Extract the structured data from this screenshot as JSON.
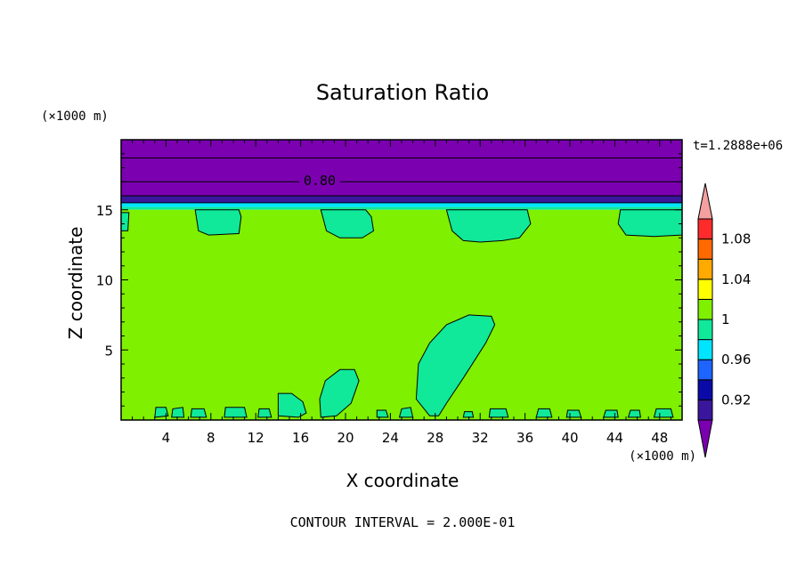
{
  "chart_data": {
    "type": "heatmap",
    "title": "Saturation Ratio",
    "xlabel": "X coordinate",
    "ylabel": "Z coordinate",
    "x_unit": "(×1000 m)",
    "y_unit": "(×1000 m)",
    "time_label": "t=1.2888e+06",
    "footer": "CONTOUR INTERVAL = 2.000E-01",
    "xlim": [
      0,
      50
    ],
    "ylim": [
      0,
      20
    ],
    "x_ticks": [
      4,
      8,
      12,
      16,
      20,
      24,
      28,
      32,
      36,
      40,
      44,
      48
    ],
    "y_ticks": [
      5,
      10,
      15
    ],
    "contour_label": "0.80",
    "colorbar": {
      "levels": [
        "0.92",
        "0.96",
        "1",
        "1.04",
        "1.08"
      ],
      "colors": [
        "#7b00b0",
        "#3a169c",
        "#0a0aa8",
        "#1e64ff",
        "#00e5ff",
        "#10e89a",
        "#7ff000",
        "#ffff00",
        "#ffaa00",
        "#ff6a00",
        "#ff2b2b",
        "#f5a0a0"
      ]
    },
    "layers": [
      {
        "z_from": 16.0,
        "z_to": 20.0,
        "color": "#7b00b0"
      },
      {
        "z_from": 15.5,
        "z_to": 16.0,
        "color": "#3a169c"
      },
      {
        "z_from": 15.2,
        "z_to": 15.5,
        "color": "#00e5ff"
      },
      {
        "z_from": 15.0,
        "z_to": 15.2,
        "color": "#10e89a"
      },
      {
        "z_from": 0.0,
        "z_to": 15.0,
        "color": "#7ff000"
      }
    ],
    "contour_lines_z": [
      16.0,
      17.0,
      18.7,
      15.5
    ],
    "regions": [
      {
        "color": "#10e89a",
        "points": [
          [
            27.5,
            0.3
          ],
          [
            26.3,
            1.5
          ],
          [
            26.5,
            4.0
          ],
          [
            27.5,
            5.5
          ],
          [
            29.0,
            6.8
          ],
          [
            31.0,
            7.5
          ],
          [
            33.0,
            7.4
          ],
          [
            33.3,
            6.8
          ],
          [
            32.5,
            5.5
          ],
          [
            30.5,
            3.0
          ],
          [
            29.0,
            1.2
          ],
          [
            28.3,
            0.3
          ]
        ]
      },
      {
        "color": "#10e89a",
        "points": [
          [
            17.8,
            0.2
          ],
          [
            17.7,
            1.5
          ],
          [
            18.2,
            2.8
          ],
          [
            19.5,
            3.6
          ],
          [
            20.8,
            3.6
          ],
          [
            21.2,
            2.8
          ],
          [
            20.5,
            1.2
          ],
          [
            19.2,
            0.3
          ]
        ]
      },
      {
        "color": "#10e89a",
        "points": [
          [
            14.0,
            0.3
          ],
          [
            14.0,
            1.9
          ],
          [
            15.2,
            1.9
          ],
          [
            16.2,
            1.3
          ],
          [
            16.5,
            0.5
          ],
          [
            15.8,
            0.2
          ]
        ]
      },
      {
        "color": "#10e89a",
        "points": [
          [
            6.6,
            15.0
          ],
          [
            6.9,
            13.5
          ],
          [
            7.8,
            13.2
          ],
          [
            10.5,
            13.3
          ],
          [
            10.7,
            14.5
          ],
          [
            10.5,
            15.0
          ]
        ]
      },
      {
        "color": "#10e89a",
        "points": [
          [
            17.8,
            15.0
          ],
          [
            18.3,
            13.5
          ],
          [
            19.5,
            13.0
          ],
          [
            21.5,
            13.0
          ],
          [
            22.5,
            13.5
          ],
          [
            22.3,
            14.5
          ],
          [
            21.8,
            15.0
          ]
        ]
      },
      {
        "color": "#10e89a",
        "points": [
          [
            29.0,
            15.0
          ],
          [
            29.5,
            13.5
          ],
          [
            30.5,
            12.8
          ],
          [
            32.0,
            12.7
          ],
          [
            34.0,
            12.8
          ],
          [
            35.5,
            13.0
          ],
          [
            36.5,
            14.0
          ],
          [
            36.2,
            15.0
          ]
        ]
      },
      {
        "color": "#10e89a",
        "points": [
          [
            44.5,
            15.0
          ],
          [
            44.3,
            14.0
          ],
          [
            45.0,
            13.2
          ],
          [
            47.5,
            13.1
          ],
          [
            50.0,
            13.2
          ],
          [
            50.0,
            15.0
          ]
        ]
      },
      {
        "color": "#10e89a",
        "points": [
          [
            0.0,
            14.8
          ],
          [
            0.7,
            14.8
          ],
          [
            0.6,
            13.5
          ],
          [
            0.0,
            13.5
          ]
        ]
      },
      {
        "color": "#10e89a",
        "points": [
          [
            3.0,
            0.2
          ],
          [
            3.1,
            0.9
          ],
          [
            4.0,
            0.9
          ],
          [
            4.2,
            0.3
          ]
        ]
      },
      {
        "color": "#10e89a",
        "points": [
          [
            4.5,
            0.2
          ],
          [
            4.6,
            0.8
          ],
          [
            5.5,
            0.9
          ],
          [
            5.6,
            0.2
          ]
        ]
      },
      {
        "color": "#10e89a",
        "points": [
          [
            6.2,
            0.2
          ],
          [
            6.3,
            0.8
          ],
          [
            7.4,
            0.8
          ],
          [
            7.6,
            0.2
          ]
        ]
      },
      {
        "color": "#10e89a",
        "points": [
          [
            9.2,
            0.2
          ],
          [
            9.3,
            0.9
          ],
          [
            11.0,
            0.9
          ],
          [
            11.2,
            0.2
          ]
        ]
      },
      {
        "color": "#10e89a",
        "points": [
          [
            12.2,
            0.2
          ],
          [
            12.3,
            0.8
          ],
          [
            13.2,
            0.8
          ],
          [
            13.4,
            0.2
          ]
        ]
      },
      {
        "color": "#10e89a",
        "points": [
          [
            22.8,
            0.2
          ],
          [
            22.8,
            0.7
          ],
          [
            23.6,
            0.7
          ],
          [
            23.8,
            0.2
          ]
        ]
      },
      {
        "color": "#10e89a",
        "points": [
          [
            24.8,
            0.2
          ],
          [
            25.0,
            0.8
          ],
          [
            25.8,
            0.9
          ],
          [
            26.0,
            0.2
          ]
        ]
      },
      {
        "color": "#10e89a",
        "points": [
          [
            30.5,
            0.2
          ],
          [
            30.6,
            0.6
          ],
          [
            31.3,
            0.6
          ],
          [
            31.4,
            0.2
          ]
        ]
      },
      {
        "color": "#10e89a",
        "points": [
          [
            32.8,
            0.2
          ],
          [
            32.9,
            0.8
          ],
          [
            34.3,
            0.8
          ],
          [
            34.5,
            0.2
          ]
        ]
      },
      {
        "color": "#10e89a",
        "points": [
          [
            37.0,
            0.2
          ],
          [
            37.2,
            0.8
          ],
          [
            38.2,
            0.8
          ],
          [
            38.4,
            0.2
          ]
        ]
      },
      {
        "color": "#10e89a",
        "points": [
          [
            39.7,
            0.2
          ],
          [
            39.8,
            0.7
          ],
          [
            40.8,
            0.7
          ],
          [
            41.0,
            0.2
          ]
        ]
      },
      {
        "color": "#10e89a",
        "points": [
          [
            43.0,
            0.2
          ],
          [
            43.2,
            0.7
          ],
          [
            44.2,
            0.7
          ],
          [
            44.3,
            0.2
          ]
        ]
      },
      {
        "color": "#10e89a",
        "points": [
          [
            45.2,
            0.2
          ],
          [
            45.4,
            0.7
          ],
          [
            46.2,
            0.7
          ],
          [
            46.3,
            0.2
          ]
        ]
      },
      {
        "color": "#10e89a",
        "points": [
          [
            47.5,
            0.2
          ],
          [
            47.7,
            0.8
          ],
          [
            49.0,
            0.8
          ],
          [
            49.2,
            0.2
          ]
        ]
      }
    ]
  }
}
